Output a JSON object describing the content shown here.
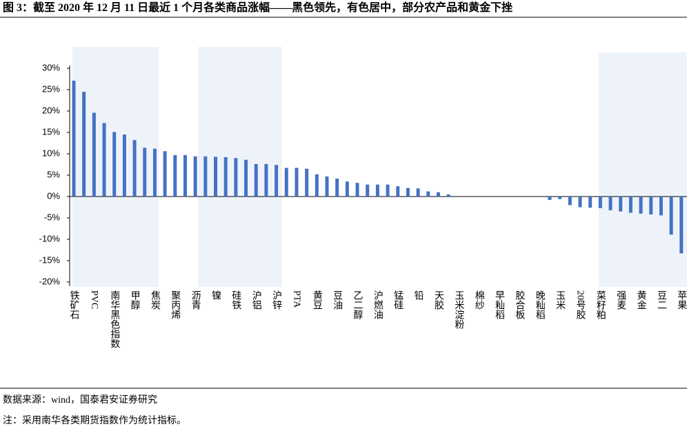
{
  "chart_data": {
    "type": "bar",
    "title": "图 3：截至 2020 年 12 月 11 日最近 1 个月各类商品涨幅——黑色领先，有色居中，部分农产品和黄金下挫",
    "source": "数据来源：wind，国泰君安证券研究",
    "note": "注：采用南华各类期货指数作为统计指标。",
    "categories": [
      "铁矿石",
      null,
      "PVC",
      null,
      "南华黑色指数",
      null,
      "甲醇",
      null,
      "焦炭",
      null,
      "聚丙烯",
      null,
      "沥青",
      null,
      "镍",
      null,
      "硅铁",
      null,
      "沪铝",
      null,
      "沪锌",
      null,
      "PTA",
      null,
      "黄豆",
      null,
      "豆油",
      null,
      "乙二醇",
      null,
      "沪燃油",
      null,
      "锰硅",
      null,
      "铅",
      null,
      "天胶",
      null,
      "玉米淀粉",
      null,
      "棉纱",
      null,
      "早籼稻",
      null,
      "胶合板",
      null,
      "晚籼稻",
      null,
      "玉米",
      null,
      "20号胶",
      null,
      "菜籽粕",
      null,
      "强麦",
      null,
      "黄金",
      null,
      "豆二",
      null,
      "苹果"
    ],
    "values": [
      27.1,
      24.5,
      19.6,
      17.2,
      15.1,
      14.5,
      13.2,
      11.4,
      11.2,
      10.6,
      9.7,
      9.7,
      9.4,
      9.4,
      9.3,
      9.2,
      9.0,
      8.6,
      7.6,
      7.6,
      7.4,
      6.7,
      6.7,
      6.5,
      5.2,
      4.7,
      4.2,
      3.5,
      3.2,
      2.8,
      2.8,
      2.8,
      2.4,
      2.0,
      1.9,
      1.2,
      1.0,
      0.5,
      0,
      0,
      0,
      0,
      0,
      0,
      0,
      0,
      0,
      -0.8,
      -0.6,
      -2.0,
      -2.5,
      -2.6,
      -2.7,
      -3.2,
      -3.5,
      -3.8,
      -4.0,
      -4.2,
      -4.4,
      -8.9,
      -13.3
    ],
    "color": "#4472c4",
    "ylim": [
      -20,
      30
    ],
    "yticks": [
      {
        "value": -20,
        "label": "-20%"
      },
      {
        "value": -15,
        "label": "-15%"
      },
      {
        "value": -10,
        "label": "-10%"
      },
      {
        "value": -5,
        "label": "-5%"
      },
      {
        "value": 0,
        "label": "0%"
      },
      {
        "value": 5,
        "label": "5%"
      },
      {
        "value": 10,
        "label": "10%"
      },
      {
        "value": 15,
        "label": "15%"
      },
      {
        "value": 20,
        "label": "20%"
      },
      {
        "value": 25,
        "label": "25%"
      },
      {
        "value": 30,
        "label": "30%"
      }
    ],
    "grid": false
  }
}
